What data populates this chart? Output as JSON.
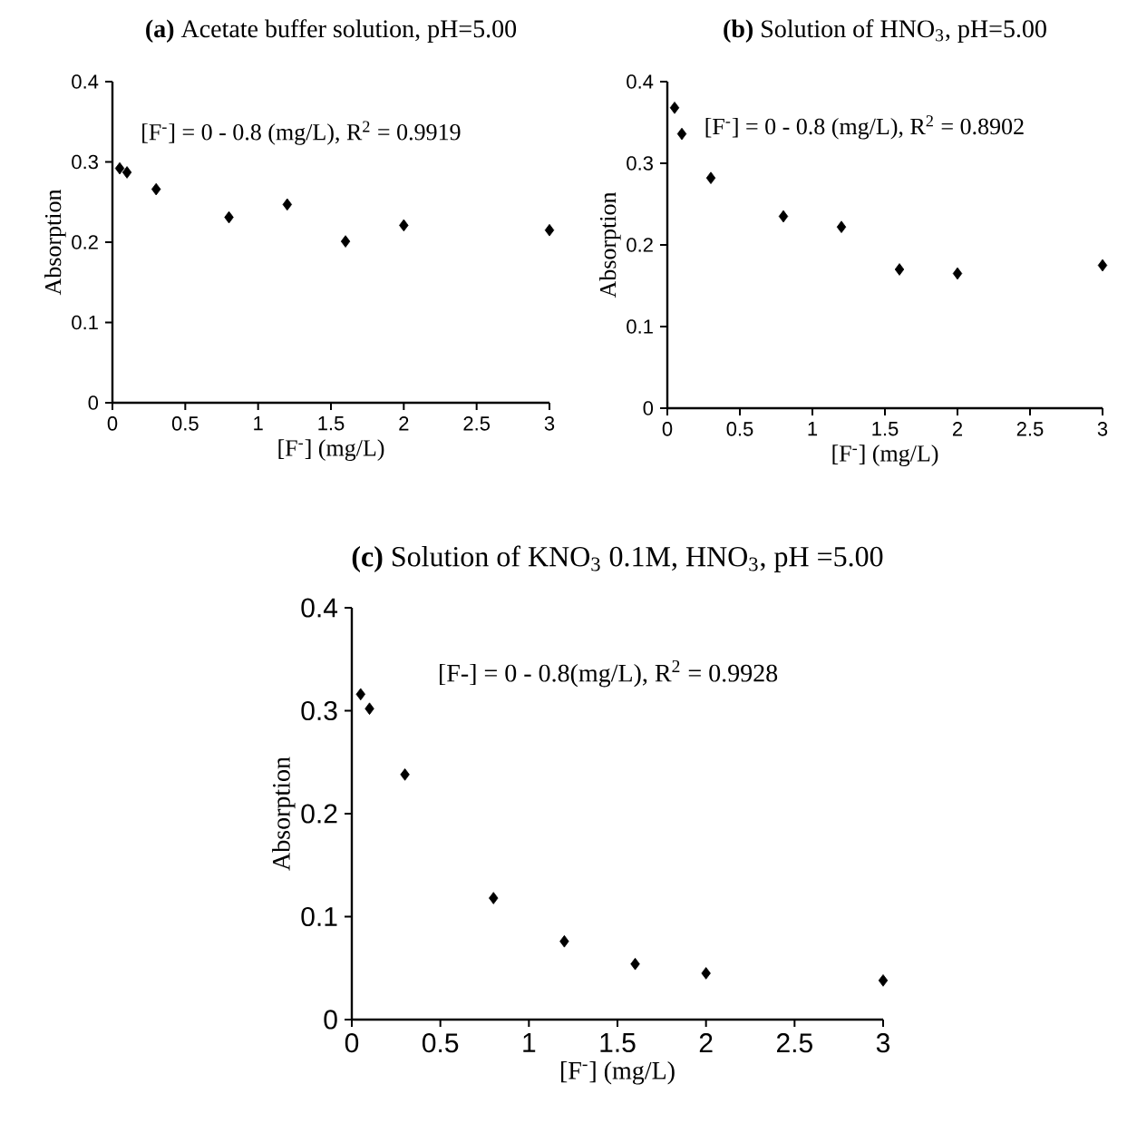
{
  "chart_data": [
    {
      "type": "scatter",
      "title": "**(a)** Acetate buffer solution, pH=5.00",
      "xlabel": "[F$^{-}$] (mg/L)",
      "ylabel": "Absorption",
      "annotations": [
        "[F$^{-}$] = 0 - 0.8 (mg/L), R$^{2}$ = 0.9919"
      ],
      "x": [
        0.05,
        0.1,
        0.3,
        0.8,
        1.2,
        1.6,
        2,
        3
      ],
      "values": [
        0.292,
        0.287,
        0.266,
        0.231,
        0.247,
        0.201,
        0.221,
        0.215
      ],
      "color": "#000000",
      "marker": "diamond",
      "xlim": [
        0,
        3
      ],
      "ylim": [
        0,
        0.4
      ],
      "xticks": [
        0,
        0.5,
        1,
        1.5,
        2,
        2.5,
        3
      ],
      "yticks": [
        0,
        0.1,
        0.2,
        0.3,
        0.4
      ]
    },
    {
      "type": "scatter",
      "title": "**(b)** Solution of HNO$_{3}$, pH=5.00",
      "xlabel": "[F$^{-}$] (mg/L)",
      "ylabel": "Absorption",
      "annotations": [
        "[F$^{-}$] = 0 - 0.8 (mg/L), R$^{2}$ = 0.8902"
      ],
      "x": [
        0.05,
        0.1,
        0.3,
        0.8,
        1.2,
        1.6,
        2,
        3
      ],
      "values": [
        0.368,
        0.336,
        0.282,
        0.235,
        0.222,
        0.17,
        0.165,
        0.175
      ],
      "color": "#000000",
      "marker": "diamond",
      "xlim": [
        0,
        3
      ],
      "ylim": [
        0,
        0.4
      ],
      "xticks": [
        0,
        0.5,
        1,
        1.5,
        2,
        2.5,
        3
      ],
      "yticks": [
        0,
        0.1,
        0.2,
        0.3,
        0.4
      ]
    },
    {
      "type": "scatter",
      "title": "**(c)** Solution of KNO$_{3}$ 0.1M, HNO$_{3}$, pH =5.00",
      "xlabel": "[F$^{-}$] (mg/L)",
      "ylabel": "Absorption",
      "annotations": [
        "[F-] = 0 - 0.8(mg/L), R$^{2}$ = 0.9928"
      ],
      "x": [
        0.05,
        0.1,
        0.3,
        0.8,
        1.2,
        1.6,
        2,
        3
      ],
      "values": [
        0.316,
        0.302,
        0.238,
        0.118,
        0.076,
        0.054,
        0.045,
        0.038
      ],
      "color": "#000000",
      "marker": "diamond",
      "xlim": [
        0,
        3
      ],
      "ylim": [
        0,
        0.4
      ],
      "xticks": [
        0,
        0.5,
        1,
        1.5,
        2,
        2.5,
        3
      ],
      "yticks": [
        0,
        0.1,
        0.2,
        0.3,
        0.4
      ]
    }
  ]
}
